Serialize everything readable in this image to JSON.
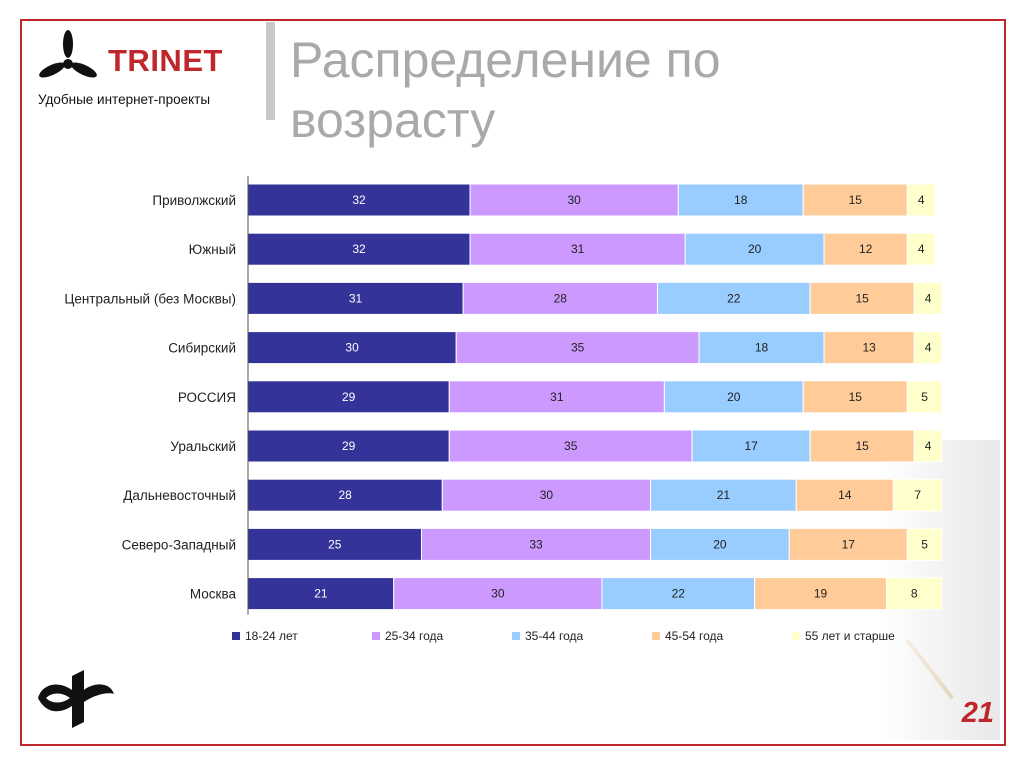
{
  "slide": {
    "title": "Распределение по возрасту",
    "page_number": "21"
  },
  "logo": {
    "brand": "TRINET",
    "tagline": "Удобные интернет-проекты",
    "brand_color": "#c0272d"
  },
  "colors": {
    "frame": "#c0272d",
    "title": "#a9a9a9"
  },
  "icons": [
    "trinet-propeller-icon",
    "fom-logo-icon"
  ],
  "chart_data": {
    "type": "bar",
    "orientation": "horizontal",
    "stacked": true,
    "percent": true,
    "xlim": [
      0,
      100
    ],
    "categories": [
      "Приволжский",
      "Южный",
      "Центральный (без Москвы)",
      "Сибирский",
      "РОССИЯ",
      "Уральский",
      "Дальневосточный",
      "Северо-Западный",
      "Москва"
    ],
    "series": [
      {
        "name": "18-24 лет",
        "color": "#333399",
        "values": [
          32,
          32,
          31,
          30,
          29,
          29,
          28,
          25,
          21
        ]
      },
      {
        "name": "25-34 года",
        "color": "#cc99ff",
        "values": [
          30,
          31,
          28,
          35,
          31,
          35,
          30,
          33,
          30
        ]
      },
      {
        "name": "35-44 года",
        "color": "#99ccff",
        "values": [
          18,
          20,
          22,
          18,
          20,
          17,
          21,
          20,
          22
        ]
      },
      {
        "name": "45-54 года",
        "color": "#ffcc99",
        "values": [
          15,
          12,
          15,
          13,
          15,
          15,
          14,
          17,
          19
        ]
      },
      {
        "name": "55 лет  и старше",
        "color": "#ffffcc",
        "values": [
          4,
          4,
          4,
          4,
          5,
          4,
          7,
          5,
          8
        ]
      }
    ],
    "legend_position": "bottom",
    "grid": false
  }
}
